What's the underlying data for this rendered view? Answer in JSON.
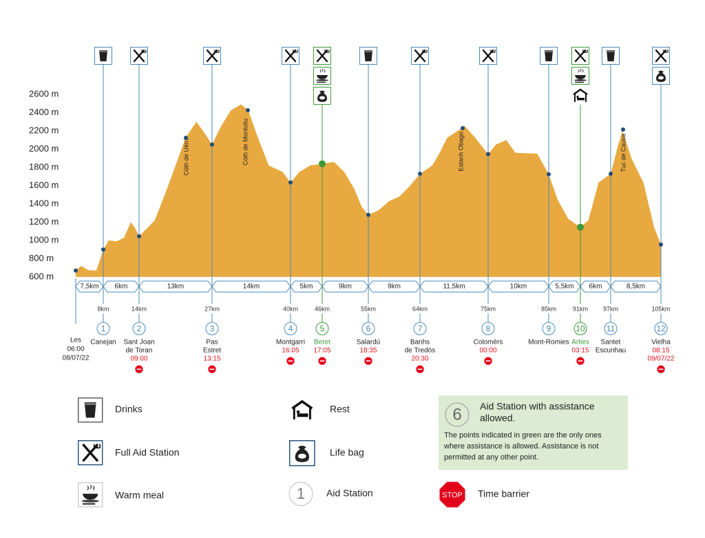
{
  "chart_data": {
    "type": "area",
    "color": "#e8a940",
    "xlim": [
      0,
      105
    ],
    "ylim": [
      600,
      2600
    ],
    "yticks": [
      {
        "value": 600,
        "label": "600 m"
      },
      {
        "value": 800,
        "label": "800 m"
      },
      {
        "value": 1000,
        "label": "1000 m"
      },
      {
        "value": 1200,
        "label": "1200 m"
      },
      {
        "value": 1400,
        "label": "1400 m"
      },
      {
        "value": 1600,
        "label": "1600 m"
      },
      {
        "value": 1800,
        "label": "1800 m"
      },
      {
        "value": 2000,
        "label": "2000 m"
      },
      {
        "value": 2200,
        "label": "2200 m"
      },
      {
        "value": 2400,
        "label": "2400 m"
      },
      {
        "value": 2600,
        "label": "2600 m"
      }
    ],
    "x": [
      0,
      1.6,
      3.6,
      6,
      8,
      8.9,
      10.3,
      11.5,
      12.6,
      13.3,
      14,
      15.2,
      16.8,
      18.7,
      20.5,
      22.3,
      24.2,
      25.4,
      27,
      28.4,
      30.1,
      31.8,
      33,
      34.6,
      36.4,
      38.7,
      40,
      41.7,
      43.7,
      46,
      48.3,
      50.3,
      52.3,
      53.7,
      55,
      56.8,
      58.6,
      60.4,
      62.2,
      64,
      66,
      67.3,
      68.4,
      70.1,
      71.2,
      72.9,
      75,
      76.3,
      78,
      79.5,
      83.1,
      85,
      86.7,
      88.7,
      91,
      92.6,
      94.6,
      97,
      98.2,
      98.9,
      100.3,
      102.2,
      103.9,
      105
    ],
    "values": [
      670,
      720,
      675,
      670,
      900,
      1000,
      990,
      1030,
      1200,
      1140,
      1045,
      1120,
      1220,
      1520,
      1820,
      2125,
      2300,
      2200,
      2050,
      2240,
      2425,
      2490,
      2425,
      2125,
      1820,
      1750,
      1635,
      1750,
      1820,
      1840,
      1860,
      1750,
      1560,
      1370,
      1280,
      1330,
      1430,
      1480,
      1595,
      1730,
      1820,
      1975,
      2125,
      2200,
      2255,
      2125,
      1945,
      2050,
      2100,
      1960,
      1950,
      1725,
      1445,
      1235,
      1145,
      1220,
      1635,
      1730,
      2050,
      2200,
      1900,
      1635,
      1145,
      955
    ],
    "annotations": [
      "Còth de Uèrri",
      "Còth de Montoliu",
      "Estanh Obago",
      "Tuc de Cauva"
    ],
    "segments": [
      "7,5km",
      "6km",
      "13km",
      "14km",
      "5km",
      "9km",
      "9km",
      "11,5km",
      "10km",
      "5,5km",
      "6km",
      "8,5km"
    ],
    "station_color": "#4a8ab8",
    "assistance_color": "#3a9a3a",
    "time_color": "#e0141e",
    "start": {
      "lines": [
        "Les",
        "06:00",
        "08/07/22"
      ]
    },
    "stations": [
      {
        "number": "1",
        "km": {
          "value": 8,
          "label": "8km"
        },
        "name": [
          "Canejan"
        ],
        "time": [],
        "time_barrier": false,
        "assistance": false
      },
      {
        "number": "2",
        "km": {
          "value": 14,
          "label": "14km"
        },
        "name": [
          "Sant Joan",
          "de Toran"
        ],
        "time": [
          "09:00"
        ],
        "time_barrier": true,
        "assistance": false
      },
      {
        "number": "3",
        "km": {
          "value": 27,
          "label": "27km"
        },
        "name": [
          "Pas",
          "Estret"
        ],
        "time": [
          "13:15"
        ],
        "time_barrier": true,
        "assistance": false
      },
      {
        "number": "4",
        "km": {
          "value": 40,
          "label": "40km"
        },
        "name": [
          "Montgarri"
        ],
        "time": [
          "16:05"
        ],
        "time_barrier": true,
        "assistance": false
      },
      {
        "number": "5",
        "km": {
          "value": 46,
          "label": "46km"
        },
        "name": [
          "Beret"
        ],
        "time": [
          "17:05"
        ],
        "time_barrier": true,
        "assistance": true
      },
      {
        "number": "6",
        "km": {
          "value": 55,
          "label": "55km"
        },
        "name": [
          "Salardú"
        ],
        "time": [
          "18:35"
        ],
        "time_barrier": true,
        "assistance": false
      },
      {
        "number": "7",
        "km": {
          "value": 64,
          "label": "64km"
        },
        "name": [
          "Banhs",
          "de Tredòs"
        ],
        "time": [
          "20:30"
        ],
        "time_barrier": true,
        "assistance": false
      },
      {
        "number": "8",
        "km": {
          "value": 75,
          "label": "75km"
        },
        "name": [
          "Colomèrs"
        ],
        "time": [
          "00:00"
        ],
        "time_barrier": true,
        "assistance": false
      },
      {
        "number": "9",
        "km": {
          "value": 85,
          "label": "85km"
        },
        "name": [
          "Mont-Romies"
        ],
        "time": [],
        "time_barrier": false,
        "assistance": false
      },
      {
        "number": "10",
        "km": {
          "value": 91,
          "label": "91km"
        },
        "name": [
          "Arties"
        ],
        "time": [
          "03:15"
        ],
        "time_barrier": true,
        "assistance": true
      },
      {
        "number": "11",
        "km": {
          "value": 97,
          "label": "97km"
        },
        "name": [
          "Santet",
          "Escunhau"
        ],
        "time": [],
        "time_barrier": false,
        "assistance": false
      },
      {
        "number": "12",
        "km": {
          "value": 105,
          "label": "105km"
        },
        "name": [
          "Vielha"
        ],
        "time": [
          "08:15",
          "09/07/22"
        ],
        "time_barrier": true,
        "assistance": false
      }
    ]
  },
  "legend": {
    "drinks": "Drinks",
    "full": "Full Aid Station",
    "meal": "Warm meal",
    "rest": "Rest",
    "bag": "Life bag",
    "aid_number": "1",
    "aid": "Aid Station",
    "assist_number": "6",
    "assist_title": [
      "Aid Station with assistance",
      "allowed."
    ],
    "assist_text": [
      "The points indicated in green are the only ones",
      "where assistance is allowed. Assistance is not",
      "permitted at any other point."
    ],
    "stop_sign": "STOP",
    "barrier": "Time barrier"
  }
}
